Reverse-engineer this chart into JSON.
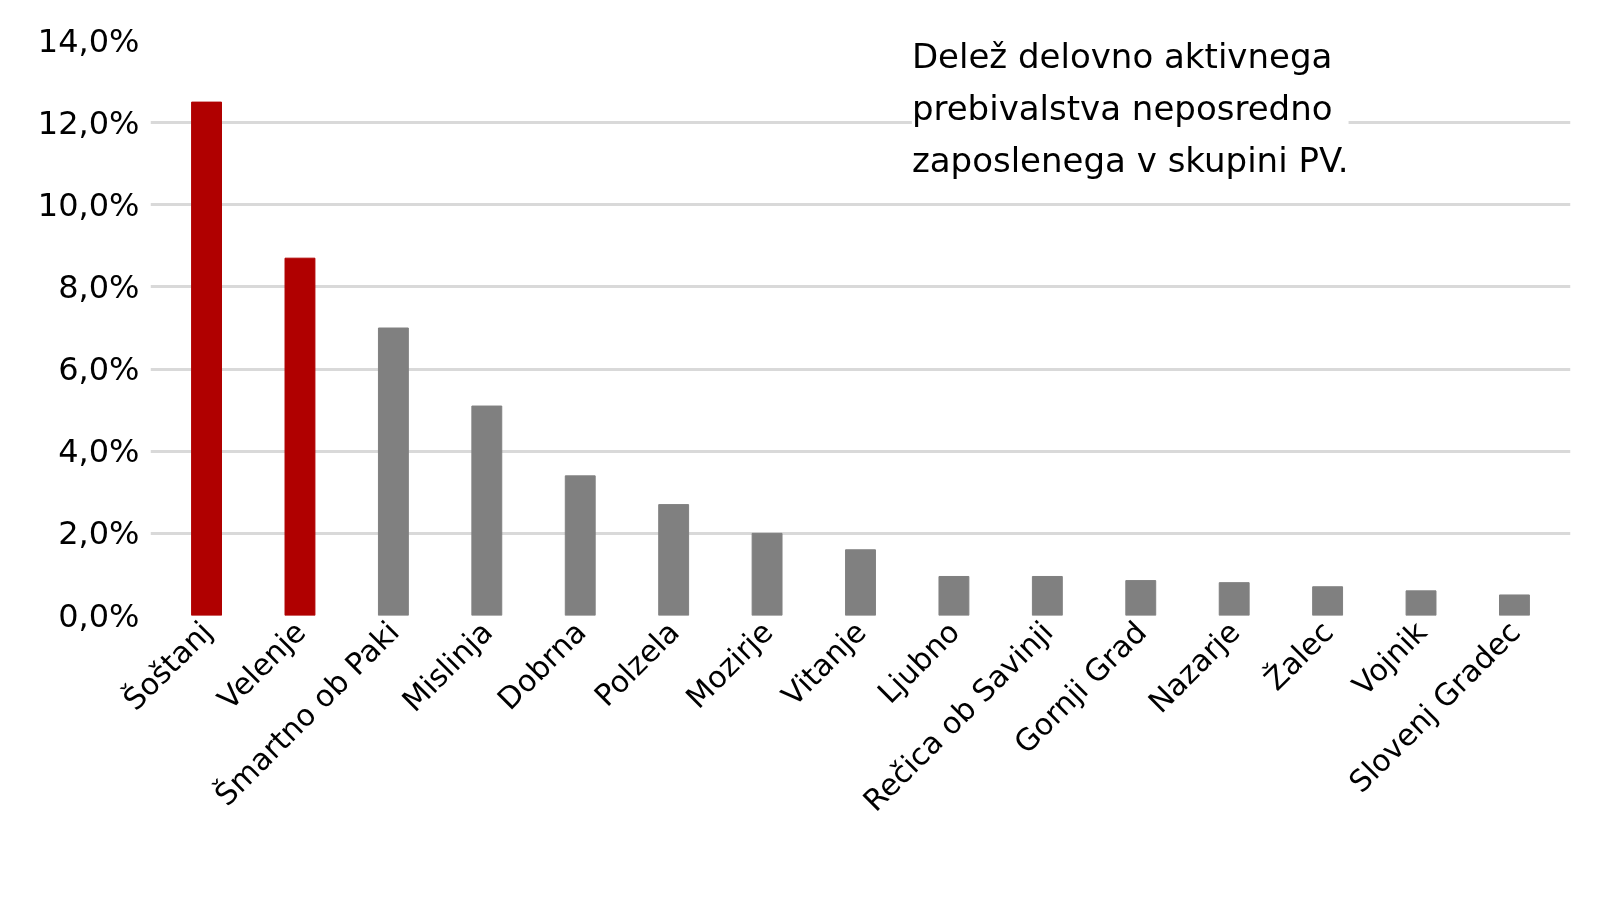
{
  "chart_data": {
    "type": "bar",
    "categories": [
      "Šoštanj",
      "Velenje",
      "Šmartno ob Paki",
      "Mislinja",
      "Dobrna",
      "Polzela",
      "Mozirje",
      "Vitanje",
      "Ljubno",
      "Rečica ob Savinji",
      "Gornji Grad",
      "Nazarje",
      "Žalec",
      "Vojnik",
      "Slovenj Gradec"
    ],
    "values": [
      12.5,
      8.7,
      7.0,
      5.1,
      3.4,
      2.7,
      2.0,
      1.6,
      0.95,
      0.95,
      0.85,
      0.8,
      0.7,
      0.6,
      0.5
    ],
    "colors": [
      "#b00000",
      "#b00000",
      "#808080",
      "#808080",
      "#808080",
      "#808080",
      "#808080",
      "#808080",
      "#808080",
      "#808080",
      "#808080",
      "#808080",
      "#808080",
      "#808080",
      "#808080"
    ],
    "ylim": [
      0,
      14
    ],
    "yticks": [
      {
        "value": 0,
        "label": "0,0%"
      },
      {
        "value": 2,
        "label": "2,0%"
      },
      {
        "value": 4,
        "label": "4,0%"
      },
      {
        "value": 6,
        "label": "6,0%"
      },
      {
        "value": 8,
        "label": "8,0%"
      },
      {
        "value": 10,
        "label": "10,0%"
      },
      {
        "value": 12,
        "label": "12,0%"
      },
      {
        "value": 14,
        "label": "14,0%"
      }
    ],
    "grid": "y",
    "annotations": [
      "Delež delovno aktivnega\nprebivalstva neposredno\nzaposlenega v skupini PV."
    ]
  }
}
